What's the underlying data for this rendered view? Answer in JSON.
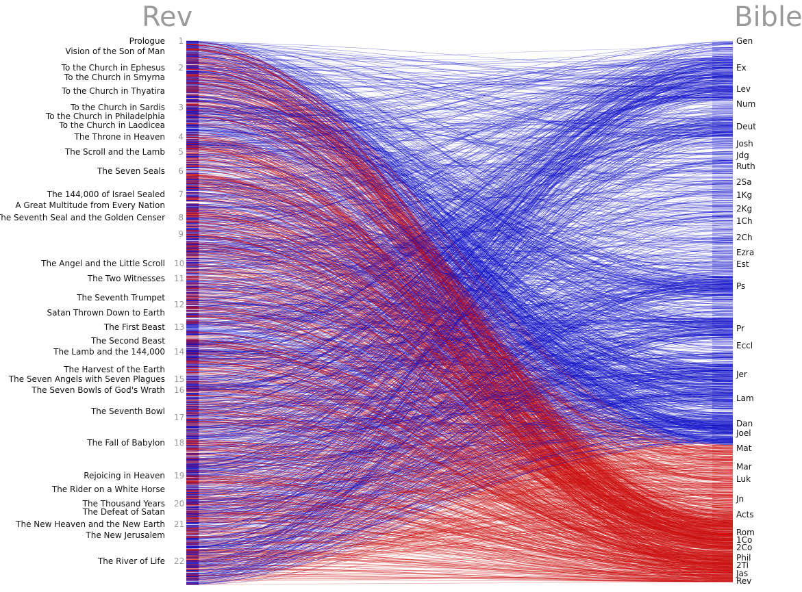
{
  "titles": {
    "left": "Rev",
    "right": "Bible"
  },
  "colors": {
    "old_testament": "#1010c8",
    "new_testament": "#cc1010",
    "axis_label": "#999999"
  },
  "sections": [
    "Prologue",
    "Vision of the Son of Man",
    "To the Church in Ephesus",
    "To the Church in Smyrna",
    "To the Church in Thyatira",
    "To the Church in Sardis",
    "To the Church in Philadelphia",
    "To the Church in Laodicea",
    "The Throne in Heaven",
    "The Scroll and the Lamb",
    "The Seven Seals",
    "The 144,000 of Israel Sealed",
    "A Great Multitude from Every Nation",
    "The Seventh Seal and the Golden Censer",
    "The Angel and the Little Scroll",
    "The Two Witnesses",
    "The Seventh Trumpet",
    "Satan Thrown Down to Earth",
    "The First Beast",
    "The Second Beast",
    "The Lamb and the 144,000",
    "The Harvest of the Earth",
    "The Seven Angels with Seven Plagues",
    "The Seven Bowls of God's Wrath",
    "The Seventh Bowl",
    "The Fall of Babylon",
    "Rejoicing in Heaven",
    "The Rider on a White Horse",
    "The Thousand Years",
    "The Defeat of Satan",
    "The New Heaven and the New Earth",
    "The New Jerusalem",
    "The River of Life"
  ],
  "chapters": [
    "1",
    "2",
    "3",
    "4",
    "5",
    "6",
    "7",
    "8",
    "9",
    "10",
    "11",
    "12",
    "13",
    "14",
    "15",
    "16",
    "17",
    "18",
    "19",
    "20",
    "21",
    "22"
  ],
  "books": [
    "Gen",
    "Ex",
    "Lev",
    "Num",
    "Deut",
    "Josh",
    "Jdg",
    "Ruth",
    "2Sa",
    "1Kg",
    "2Kg",
    "1Ch",
    "2Ch",
    "Ezra",
    "Est",
    "Ps",
    "Pr",
    "Eccl",
    "Jer",
    "Lam",
    "Dan",
    "Joel",
    "Mat",
    "Mar",
    "Luk",
    "Jn",
    "Acts",
    "Rom",
    "1Co",
    "2Co",
    "Phil",
    "2Ti",
    "Jas",
    "Rev"
  ]
}
